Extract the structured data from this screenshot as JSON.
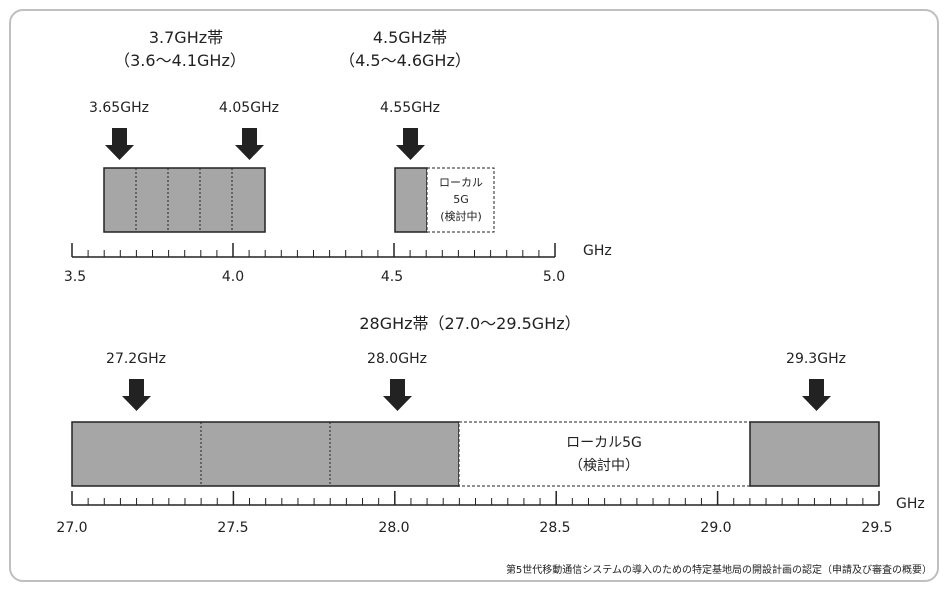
{
  "band_37": {
    "title_line1": "3.7GHz帯",
    "title_line2": "（3.6～4.1GHz）",
    "arrow_labels": [
      "3.65GHz",
      "4.05GHz"
    ]
  },
  "band_45": {
    "title_line1": "4.5GHz帯",
    "title_line2": "（4.5～4.6GHz）",
    "arrow_labels": [
      "4.55GHz"
    ],
    "local5g_lines": [
      "ローカル",
      "5G",
      "(検討中)"
    ]
  },
  "axis_top": {
    "unit": "GHz",
    "tick_labels": [
      "3.5",
      "4.0",
      "4.5",
      "5.0"
    ]
  },
  "band_28": {
    "title": "28GHz帯（27.0～29.5GHz）",
    "arrow_labels": [
      "27.2GHz",
      "28.0GHz",
      "29.3GHz"
    ],
    "local5g_lines": [
      "ローカル5G",
      "（検討中）"
    ]
  },
  "axis_bottom": {
    "unit": "GHz",
    "tick_labels": [
      "27.0",
      "27.5",
      "28.0",
      "28.5",
      "29.0",
      "29.5"
    ]
  },
  "footer": {
    "source": "第5世代移動通信システムの導入のための特定基地局の開設計画の認定（申請及び審査の概要）"
  },
  "colors": {
    "assigned_fill": "#a6a6a6",
    "outline": "#222222",
    "frame_border": "#bfbfbf"
  }
}
